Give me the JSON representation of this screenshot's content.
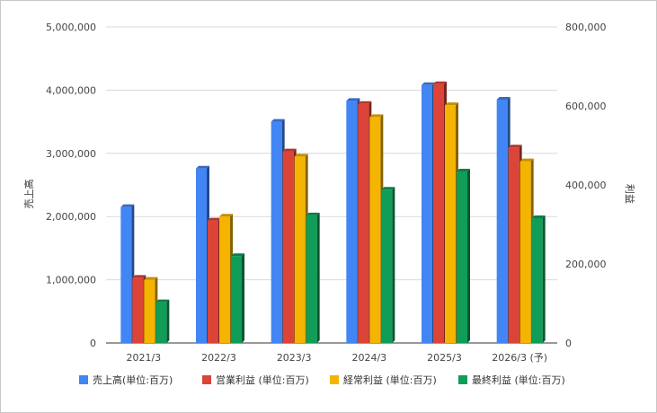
{
  "chart_data": {
    "type": "bar",
    "categories": [
      "2021/3",
      "2022/3",
      "2023/3",
      "2024/3",
      "2025/3",
      "2026/3 (予)"
    ],
    "left_axis": {
      "label": "売上高",
      "range": [
        0,
        5000000
      ],
      "ticks": [
        "0",
        "1,000,000",
        "2,000,000",
        "3,000,000",
        "4,000,000",
        "5,000,000"
      ]
    },
    "right_axis": {
      "label": "利益",
      "range": [
        0,
        800000
      ],
      "ticks": [
        "0",
        "200,000",
        "400,000",
        "600,000",
        "800,000"
      ]
    },
    "series": [
      {
        "name": "売上高(単位:百万)",
        "axis": "left",
        "color": "#4285f4",
        "values": [
          2150000,
          2760000,
          3500000,
          3830000,
          4080000,
          3850000
        ]
      },
      {
        "name": "営業利益 (単位:百万)",
        "axis": "right",
        "color": "#db4437",
        "values": [
          165000,
          310000,
          485000,
          605000,
          655000,
          495000
        ]
      },
      {
        "name": "経常利益 (単位:百万)",
        "axis": "right",
        "color": "#f4b400",
        "values": [
          160000,
          320000,
          472000,
          572000,
          602000,
          460000
        ]
      },
      {
        "name": "最終利益 (単位:百万)",
        "axis": "right",
        "color": "#0f9d58",
        "values": [
          103000,
          220000,
          323000,
          388000,
          434000,
          316000
        ]
      }
    ],
    "grid": true,
    "legend": "bottom"
  }
}
